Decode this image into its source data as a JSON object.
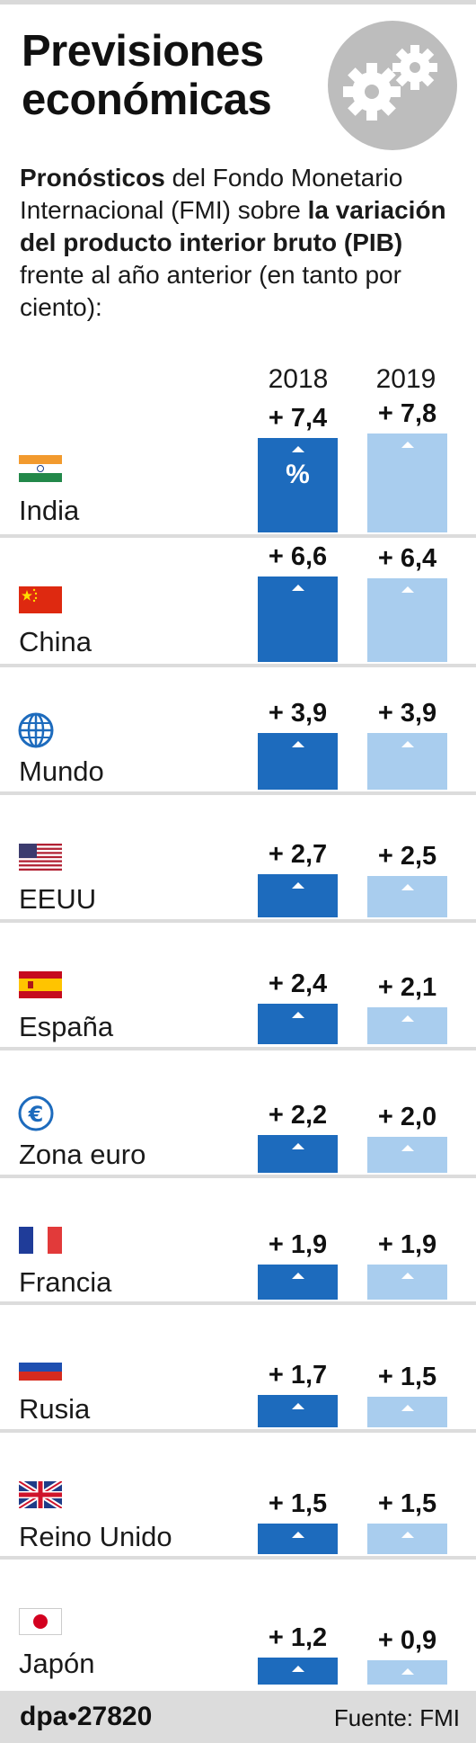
{
  "title": "Previsiones económicas",
  "intro": {
    "p1_bold": "Pronósticos",
    "p2": " del Fondo Monetario Internacional (FMI) sobre ",
    "p3_bold": "la variación del producto interior bruto (PIB)",
    "p4": " frente al año anterior (en tanto por ciento):"
  },
  "colors": {
    "bar_2018": "#1d6bbd",
    "bar_2019": "#a9cdee",
    "footer_bg": "#dcdcdc"
  },
  "chart_data": {
    "type": "bar",
    "orientation": "vertical",
    "categories": [
      "India",
      "China",
      "Mundo",
      "EEUU",
      "España",
      "Zona euro",
      "Francia",
      "Rusia",
      "Reino Unido",
      "Japón"
    ],
    "icons": [
      "india-flag-icon",
      "china-flag-icon",
      "globe-icon",
      "usa-flag-icon",
      "spain-flag-icon",
      "euro-icon",
      "france-flag-icon",
      "russia-flag-icon",
      "uk-flag-icon",
      "japan-flag-icon"
    ],
    "series": [
      {
        "name": "2018",
        "values": [
          7.4,
          6.6,
          3.9,
          2.7,
          2.4,
          2.2,
          1.9,
          1.7,
          1.5,
          1.2
        ],
        "labels": [
          "+ 7,4",
          "+  6,6",
          "+ 3,9",
          "+ 2,7",
          "+ 2,4",
          "+ 2,2",
          "+ 1,9",
          "+ 1,7",
          "+ 1,5",
          "+ 1,2"
        ]
      },
      {
        "name": "2019",
        "values": [
          7.8,
          6.4,
          3.9,
          2.5,
          2.1,
          2.0,
          1.9,
          1.5,
          1.5,
          0.9
        ],
        "labels": [
          "+ 7,8",
          "+ 6,4",
          "+ 3,9",
          "+ 2,5",
          "+ 2,1",
          "+ 2,0",
          "+ 1,9",
          "+ 1,5",
          "+ 1,5",
          "+ 0,9"
        ]
      }
    ],
    "unit_symbol": "%"
  },
  "footer": {
    "agency": "dpa•27820",
    "source": "Fuente: FMI"
  }
}
